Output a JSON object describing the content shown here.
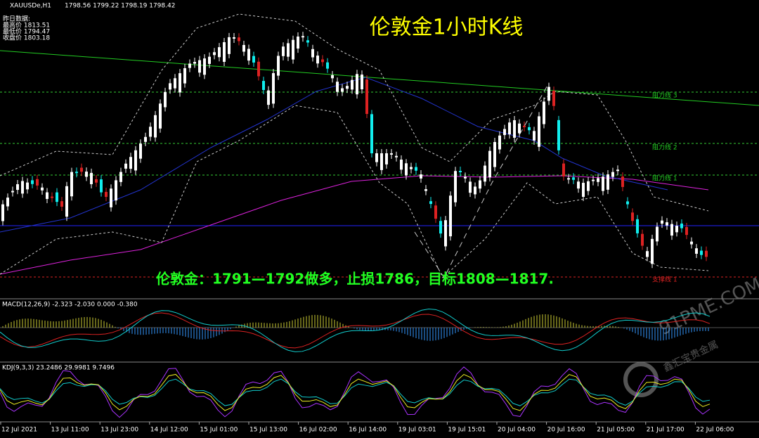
{
  "header": {
    "symbol": "XAUUSDe,H1",
    "ohlc": "1798.56 1799.22 1798.19 1798.42"
  },
  "prev_day": {
    "title": "昨日数据:",
    "high": "最高价 1813.51",
    "low": "最低价 1794.47",
    "close": "收盘价 1803.18"
  },
  "title": "伦敦金1小时K线",
  "annotation": "伦敦金：1791—1792做多，止损1786，目标1808—1817.",
  "levels": [
    "阻力线 3",
    "阻力线 2",
    "阻力线 1",
    "支撑线 1"
  ],
  "macd_label": "MACD(12,26,9) -2.323 -2.030 0.000 -0.380",
  "kdj_label": "KDJ(9,3,3) 23.2486 29.9981 9.7496",
  "time_labels": [
    "12 Jul 2021",
    "13 Jul 11:00",
    "13 Jul 23:00",
    "14 Jul 12:00",
    "15 Jul 01:00",
    "15 Jul 13:00",
    "16 Jul 02:00",
    "16 Jul 14:00",
    "19 Jul 03:01",
    "19 Jul 15:01",
    "20 Jul 04:00",
    "20 Jul 16:00",
    "21 Jul 05:00",
    "21 Jul 17:00",
    "22 Jul 06:00"
  ],
  "watermark": {
    "site": "91PME.COM",
    "company": "鑫汇宝贵金属"
  }
}
